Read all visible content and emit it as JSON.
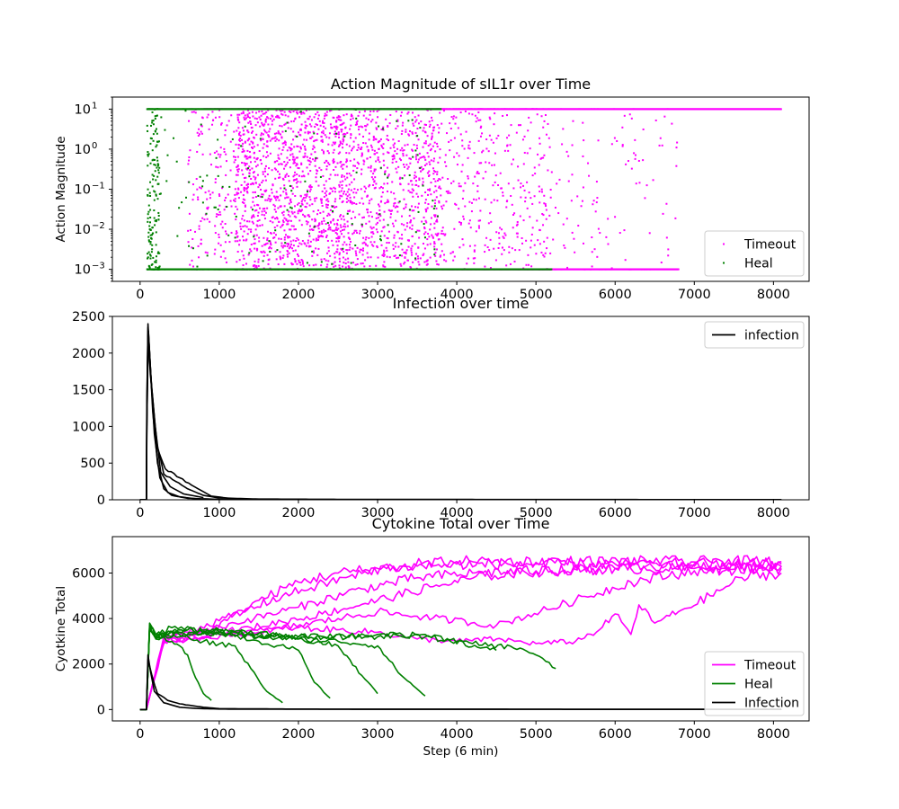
{
  "chart_data": [
    {
      "type": "scatter",
      "title": "Action Magnitude of sIL1r over Time",
      "xlabel": "",
      "ylabel": "Action Magnitude",
      "xlim": [
        -350,
        8450
      ],
      "ylim": [
        0.0005,
        20
      ],
      "yscale": "log",
      "xticks": [
        0,
        1000,
        2000,
        3000,
        4000,
        5000,
        6000,
        7000,
        8000
      ],
      "yticks": [
        {
          "value": 0.001,
          "base": "10",
          "exp": "−3"
        },
        {
          "value": 0.01,
          "base": "10",
          "exp": "−2"
        },
        {
          "value": 0.1,
          "base": "10",
          "exp": "−1"
        },
        {
          "value": 1,
          "base": "10",
          "exp": "0"
        },
        {
          "value": 10,
          "base": "10",
          "exp": "1"
        }
      ],
      "legend": {
        "position": "lower-right"
      },
      "series": [
        {
          "name": "Timeout",
          "color": "#ff00ff",
          "density_bands": [
            {
              "x": [
                600,
                1200
              ],
              "y": [
                0.001,
                10
              ],
              "density": 0.3
            },
            {
              "x": [
                1200,
                2600
              ],
              "y": [
                0.001,
                10
              ],
              "density": 1.0
            },
            {
              "x": [
                2600,
                3800
              ],
              "y": [
                0.001,
                10
              ],
              "density": 0.75
            },
            {
              "x": [
                3800,
                5200
              ],
              "y": [
                0.001,
                10
              ],
              "density": 0.3
            },
            {
              "x": [
                5200,
                6800
              ],
              "y": [
                0.001,
                10
              ],
              "density": 0.07
            }
          ],
          "floor_range": [
            3800,
            6800
          ],
          "ceiling_range": [
            800,
            8100
          ]
        },
        {
          "name": "Heal",
          "color": "#008000",
          "density_bands": [
            {
              "x": [
                90,
                250
              ],
              "y": [
                0.001,
                10
              ],
              "density": 1.0
            },
            {
              "x": [
                250,
                3800
              ],
              "y": [
                0.001,
                10
              ],
              "density": 0.04
            }
          ],
          "floor_range": [
            90,
            5200
          ],
          "ceiling_range": [
            90,
            3800
          ]
        }
      ]
    },
    {
      "type": "line",
      "title": "Infection over time",
      "xlabel": "",
      "ylabel": "",
      "xlim": [
        -350,
        8450
      ],
      "ylim": [
        0,
        2500
      ],
      "xticks": [
        0,
        1000,
        2000,
        3000,
        4000,
        5000,
        6000,
        7000,
        8000
      ],
      "yticks": [
        0,
        500,
        1000,
        1500,
        2000,
        2500
      ],
      "legend": {
        "position": "top-right"
      },
      "series": [
        {
          "name": "infection",
          "color": "#000000",
          "peak": {
            "x": 100,
            "y": 2400
          },
          "traces": [
            {
              "x": [
                0,
                80,
                85,
                100,
                130,
                180,
                250,
                350,
                500,
                700,
                1000,
                1500,
                3000,
                5000,
                8100
              ],
              "y": [
                0,
                0,
                1200,
                2400,
                1800,
                900,
                300,
                100,
                40,
                15,
                5,
                2,
                1,
                1,
                1
              ]
            },
            {
              "x": [
                0,
                80,
                85,
                105,
                140,
                200,
                300,
                450,
                600,
                800,
                1000,
                1500,
                3000,
                8100
              ],
              "y": [
                0,
                0,
                1000,
                2300,
                1600,
                800,
                350,
                250,
                150,
                60,
                25,
                10,
                5,
                2
              ]
            },
            {
              "x": [
                0,
                80,
                85,
                100,
                150,
                220,
                320,
                500,
                650,
                900,
                1200
              ],
              "y": [
                0,
                0,
                900,
                2200,
                1500,
                700,
                420,
                300,
                200,
                50,
                10
              ]
            },
            {
              "x": [
                0,
                80,
                85,
                100,
                120,
                160,
                220,
                300,
                400,
                600,
                1000
              ],
              "y": [
                0,
                0,
                1300,
                2350,
                2000,
                1200,
                500,
                150,
                60,
                20,
                5
              ]
            },
            {
              "x": [
                0,
                80,
                85,
                100,
                130,
                190,
                260,
                380,
                550,
                800
              ],
              "y": [
                0,
                0,
                1100,
                2250,
                1700,
                1000,
                380,
                180,
                80,
                30
              ]
            }
          ]
        }
      ]
    },
    {
      "type": "line",
      "title": "Cytokine Total over Time",
      "xlabel": "Step (6 min)",
      "ylabel": "Cyotkine Total",
      "xlim": [
        -350,
        8450
      ],
      "ylim": [
        -500,
        7600
      ],
      "xticks": [
        0,
        1000,
        2000,
        3000,
        4000,
        5000,
        6000,
        7000,
        8000
      ],
      "yticks": [
        0,
        2000,
        4000,
        6000
      ],
      "legend": {
        "position": "lower-right"
      },
      "series": [
        {
          "name": "Timeout",
          "color": "#ff00ff",
          "traces": [
            {
              "x": [
                0,
                80,
                300,
                900,
                1500,
                2000,
                2500,
                3000,
                3500,
                4000,
                5000,
                6000,
                7000,
                8100
              ],
              "y": [
                0,
                0,
                3200,
                3500,
                4800,
                5600,
                6000,
                6200,
                6300,
                6400,
                6400,
                6400,
                6400,
                6400
              ]
            },
            {
              "x": [
                0,
                80,
                300,
                1200,
                2000,
                2800,
                3500,
                4200,
                5000,
                6000,
                7000,
                8100
              ],
              "y": [
                0,
                0,
                3000,
                3800,
                4500,
                5300,
                5800,
                6000,
                6100,
                6200,
                6300,
                6300
              ]
            },
            {
              "x": [
                0,
                80,
                300,
                1500,
                2500,
                3000,
                3500,
                4500,
                5500,
                6200,
                7000,
                8100
              ],
              "y": [
                0,
                0,
                2900,
                3400,
                4000,
                4300,
                4100,
                3700,
                4800,
                5600,
                6100,
                6200
              ]
            },
            {
              "x": [
                0,
                80,
                300,
                1000,
                2000,
                3000,
                3500,
                4000,
                4500,
                5000,
                5500,
                5800,
                6000,
                6200,
                6300,
                6500,
                6800,
                7200,
                7600,
                8100
              ],
              "y": [
                0,
                0,
                3000,
                3300,
                3600,
                3400,
                3100,
                3000,
                3100,
                2900,
                3000,
                3500,
                4200,
                3300,
                4600,
                3800,
                4300,
                5000,
                5800,
                6000
              ]
            },
            {
              "x": [
                0,
                80,
                300,
                1000,
                1800,
                2600,
                3200,
                4000,
                4800,
                5600,
                6400,
                7200,
                8100
              ],
              "y": [
                0,
                0,
                3100,
                3900,
                5000,
                5800,
                6300,
                6500,
                6500,
                6500,
                6500,
                6500,
                6500
              ]
            },
            {
              "x": [
                0,
                80,
                300,
                1400,
                2300,
                3000,
                3700,
                4400,
                5200,
                6000,
                7000,
                8100
              ],
              "y": [
                0,
                0,
                3000,
                3600,
                4200,
                4800,
                5400,
                5900,
                6100,
                6200,
                6200,
                6300
              ]
            }
          ]
        },
        {
          "name": "Heal",
          "color": "#008000",
          "traces": [
            {
              "x": [
                0,
                80,
                120,
                200,
                300,
                400,
                500,
                600,
                700,
                800,
                900
              ],
              "y": [
                0,
                0,
                3800,
                3100,
                3200,
                3000,
                2800,
                2400,
                1400,
                700,
                400
              ]
            },
            {
              "x": [
                0,
                80,
                120,
                200,
                400,
                800,
                1200,
                1400,
                1600,
                1800
              ],
              "y": [
                0,
                0,
                3700,
                3300,
                3400,
                3000,
                2800,
                1800,
                800,
                300
              ]
            },
            {
              "x": [
                0,
                80,
                120,
                200,
                400,
                1000,
                1500,
                2000,
                2200,
                2400
              ],
              "y": [
                0,
                0,
                3700,
                3200,
                3600,
                3400,
                3000,
                2600,
                1200,
                500
              ]
            },
            {
              "x": [
                0,
                80,
                120,
                200,
                500,
                1000,
                1500,
                2000,
                2500,
                2800,
                3000
              ],
              "y": [
                0,
                0,
                3600,
                3300,
                3200,
                3500,
                3200,
                3100,
                2800,
                1500,
                700
              ]
            },
            {
              "x": [
                0,
                80,
                120,
                200,
                500,
                1000,
                2000,
                2500,
                3000,
                3300,
                3600
              ],
              "y": [
                0,
                0,
                3600,
                3200,
                3400,
                3300,
                3100,
                3000,
                2800,
                1500,
                600
              ]
            },
            {
              "x": [
                0,
                80,
                120,
                200,
                600,
                1200,
                2000,
                3000,
                3600,
                4000,
                4300,
                4500
              ],
              "y": [
                0,
                0,
                3500,
                3100,
                3500,
                3400,
                3200,
                3200,
                3300,
                3000,
                2700,
                2600
              ]
            },
            {
              "x": [
                0,
                80,
                120,
                200,
                600,
                1200,
                2000,
                3000,
                3600,
                4200,
                4800,
                5000,
                5250
              ],
              "y": [
                0,
                0,
                3600,
                3300,
                3500,
                3400,
                3200,
                3300,
                3200,
                2900,
                2700,
                2400,
                1800
              ]
            }
          ]
        },
        {
          "name": "Infection",
          "color": "#000000",
          "traces": [
            {
              "x": [
                0,
                80,
                100,
                130,
                180,
                300,
                500,
                700,
                1000,
                3000,
                8100
              ],
              "y": [
                0,
                0,
                2400,
                1700,
                800,
                300,
                100,
                50,
                20,
                10,
                5
              ]
            },
            {
              "x": [
                0,
                80,
                100,
                150,
                220,
                350,
                500,
                800,
                1000,
                2000,
                8100
              ],
              "y": [
                0,
                0,
                2200,
                1500,
                700,
                400,
                250,
                100,
                40,
                20,
                10
              ]
            }
          ]
        }
      ]
    }
  ]
}
